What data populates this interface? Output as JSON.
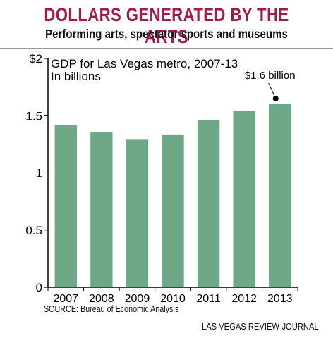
{
  "header": {
    "title": "DOLLARS GENERATED BY THE ARTS",
    "subtitle": "Performing arts, spectator sports and museums"
  },
  "chart_data": {
    "type": "bar",
    "title": "GDP for Las Vegas metro, 2007-13",
    "subtitle": "In billions",
    "categories": [
      "2007",
      "2008",
      "2009",
      "2010",
      "2011",
      "2012",
      "2013"
    ],
    "values": [
      1.42,
      1.36,
      1.29,
      1.33,
      1.46,
      1.54,
      1.6
    ],
    "ylim": [
      0,
      2
    ],
    "yticks": [
      0,
      0.5,
      1,
      1.5,
      2
    ],
    "ytick_labels": [
      "0",
      "0.5",
      "1",
      "1.5",
      "$2"
    ],
    "annotation": {
      "text": "$1.6 billion",
      "category": "2013"
    },
    "grid": false,
    "colors": {
      "bar": "#6fa886",
      "title": "#a51a4c",
      "axis": "#000000"
    }
  },
  "footer": {
    "source": "SOURCE: Bureau of Economic Analysis",
    "credit": "LAS VEGAS REVIEW-JOURNAL"
  }
}
